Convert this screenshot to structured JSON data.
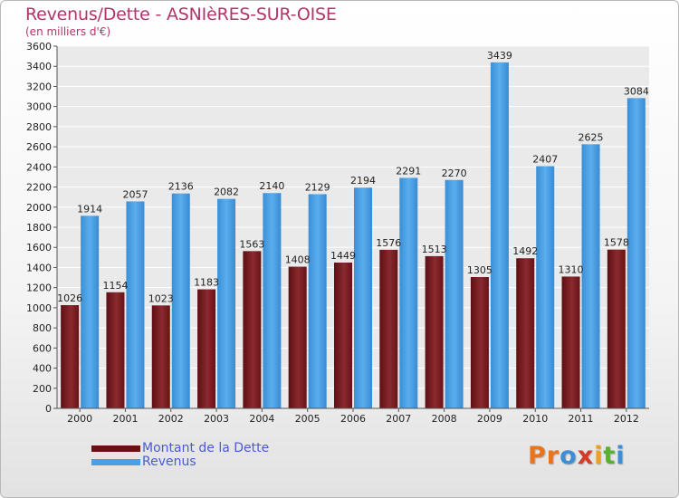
{
  "title": "Revenus/Dette - ASNIèRES-SUR-OISE",
  "subtitle": "(en milliers d'€)",
  "legend": {
    "debt_label": "Montant de la Dette",
    "revenue_label": "Revenus"
  },
  "logo": [
    "P",
    "r",
    "o",
    "x",
    "i",
    "t",
    "i"
  ],
  "colors": {
    "debt": "#7a1a20",
    "revenue": "#4aa0e6",
    "title": "#b0356a"
  },
  "chart_data": {
    "type": "bar",
    "title": "Revenus/Dette - ASNIèRES-SUR-OISE",
    "ylabel": "(en milliers d'€)",
    "ylim": [
      0,
      3600
    ],
    "ytick_step": 200,
    "grid": true,
    "legend_position": "bottom-left",
    "categories": [
      "2000",
      "2001",
      "2002",
      "2003",
      "2004",
      "2005",
      "2006",
      "2007",
      "2008",
      "2009",
      "2010",
      "2011",
      "2012"
    ],
    "series": [
      {
        "name": "Montant de la Dette",
        "values": [
          1026,
          1154,
          1023,
          1183,
          1563,
          1408,
          1449,
          1576,
          1513,
          1305,
          1492,
          1310,
          1578
        ]
      },
      {
        "name": "Revenus",
        "values": [
          1914,
          2057,
          2136,
          2082,
          2140,
          2129,
          2194,
          2291,
          2270,
          3439,
          2407,
          2625,
          3084
        ]
      }
    ]
  }
}
